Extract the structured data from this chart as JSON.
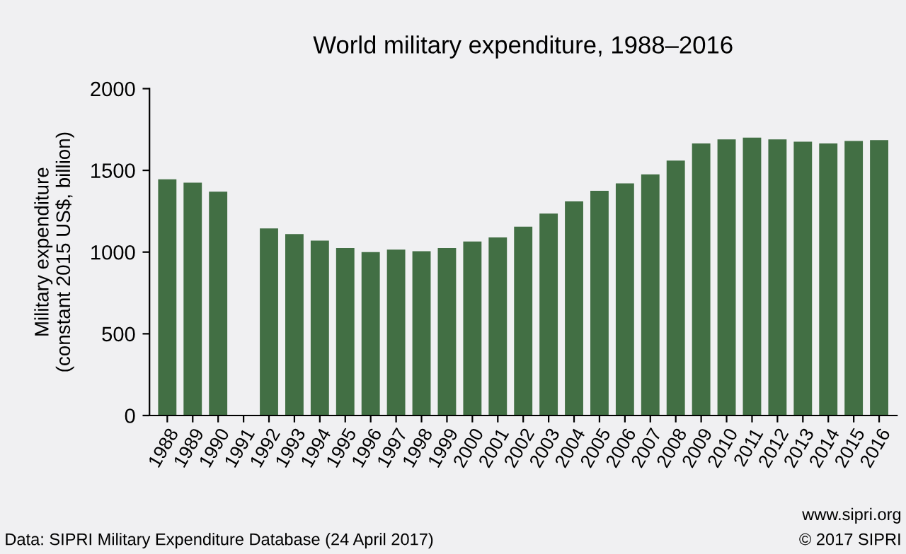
{
  "chart_data": {
    "type": "bar",
    "title": "World military expenditure, 1988–2016",
    "ylabel": "Military expenditure\n(constant 2015 US$, billion)",
    "categories": [
      "1988",
      "1989",
      "1990",
      "1991",
      "1992",
      "1993",
      "1994",
      "1995",
      "1996",
      "1997",
      "1998",
      "1999",
      "2000",
      "2001",
      "2002",
      "2003",
      "2004",
      "2005",
      "2006",
      "2007",
      "2008",
      "2009",
      "2010",
      "2011",
      "2012",
      "2013",
      "2014",
      "2015",
      "2016"
    ],
    "values": [
      1445,
      1425,
      1370,
      null,
      1145,
      1110,
      1070,
      1025,
      1000,
      1015,
      1005,
      1025,
      1065,
      1090,
      1155,
      1235,
      1310,
      1375,
      1420,
      1475,
      1560,
      1665,
      1690,
      1700,
      1690,
      1675,
      1665,
      1680,
      1685
    ],
    "color": "#426f44",
    "ylim": [
      0,
      2000
    ],
    "yticks": [
      0,
      500,
      1000,
      1500,
      2000
    ],
    "grid": false,
    "annotations": [
      "Data: SIPRI Military Expenditure Database (24 April 2017)",
      "www.sipri.org",
      "© 2017 SIPRI"
    ]
  }
}
